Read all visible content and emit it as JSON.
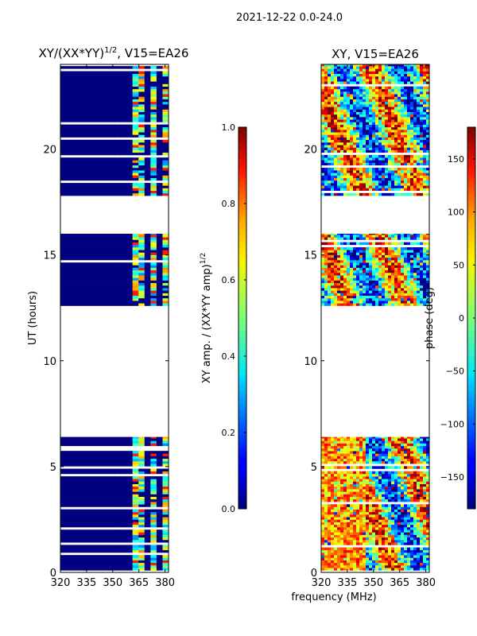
{
  "suptitle": "2021-12-22 0.0-24.0",
  "chart_data": [
    {
      "type": "heatmap",
      "title_main": "XY/(XX*YY)",
      "title_sup": "1/2",
      "title_tail": ", V15=EA26",
      "xlabel": "",
      "ylabel": "UT (hours)",
      "xlim": [
        320,
        382
      ],
      "ylim": [
        0,
        24
      ],
      "xticks": [
        320,
        335,
        350,
        365,
        380
      ],
      "yticks": [
        0,
        5,
        10,
        15,
        20
      ],
      "colorbar": {
        "label_main": "XY amp. / (XX*YY amp)",
        "label_sup": "1/2",
        "range": [
          0,
          1
        ],
        "ticks": [
          "0.0",
          "0.2",
          "0.4",
          "0.6",
          "0.8",
          "1.0"
        ],
        "tick_values": [
          0,
          0.2,
          0.4,
          0.6,
          0.8,
          1.0
        ]
      },
      "data_blocks_hours": [
        [
          0.1,
          6.4
        ],
        [
          12.6,
          16.0
        ],
        [
          17.8,
          24.0
        ]
      ],
      "colormap": "jet"
    },
    {
      "type": "heatmap",
      "title_main": "XY, V15=EA26",
      "xlabel": "frequency (MHz)",
      "ylabel": "",
      "xlim": [
        320,
        382
      ],
      "ylim": [
        0,
        24
      ],
      "xticks": [
        320,
        335,
        350,
        365,
        380
      ],
      "yticks": [
        0,
        5,
        10,
        15,
        20
      ],
      "colorbar": {
        "label_main": "phase (deg)",
        "range": [
          -180,
          180
        ],
        "ticks": [
          "−150",
          "−100",
          "−50",
          "0",
          "50",
          "100",
          "150"
        ],
        "tick_values": [
          -150,
          -100,
          -50,
          0,
          50,
          100,
          150
        ]
      },
      "data_blocks_hours": [
        [
          0.1,
          6.4
        ],
        [
          12.6,
          16.0
        ],
        [
          17.8,
          24.0
        ]
      ],
      "colormap": "jet"
    }
  ]
}
